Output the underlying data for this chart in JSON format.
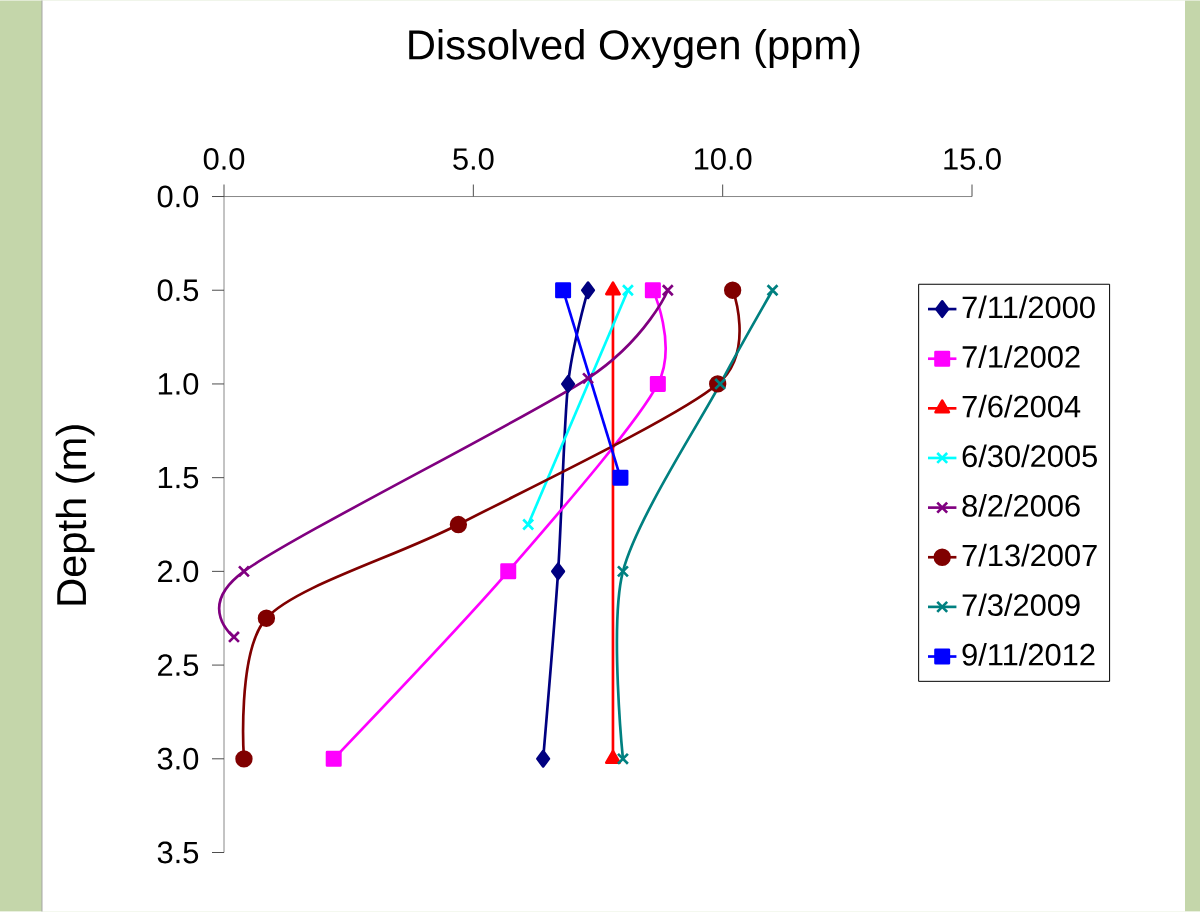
{
  "chart_data": {
    "type": "line",
    "xlabel": "Dissolved Oxygen (ppm)",
    "ylabel": "Depth (m)",
    "xlim": [
      0,
      15
    ],
    "xticks": [
      {
        "value": 0,
        "label": "0.0"
      },
      {
        "value": 5,
        "label": "5.0"
      },
      {
        "value": 10,
        "label": "10.0"
      },
      {
        "value": 15,
        "label": "15.0"
      }
    ],
    "ylim": [
      3.5,
      0
    ],
    "yticks": [
      {
        "value": 0,
        "label": "0.0"
      },
      {
        "value": 0.5,
        "label": "0.5"
      },
      {
        "value": 1,
        "label": "1.0"
      },
      {
        "value": 1.5,
        "label": "1.5"
      },
      {
        "value": 2,
        "label": "2.0"
      },
      {
        "value": 2.5,
        "label": "2.5"
      },
      {
        "value": 3,
        "label": "3.0"
      },
      {
        "value": 3.5,
        "label": "3.5"
      }
    ],
    "legend": "right",
    "series": [
      {
        "name": "7/11/2000",
        "color": "#000080",
        "marker": "diamond",
        "x": [
          7.3,
          6.9,
          6.7,
          6.4
        ],
        "values": [
          0.5,
          1.0,
          2.0,
          3.0
        ]
      },
      {
        "name": "7/1/2002",
        "color": "#ff00ff",
        "marker": "square",
        "x": [
          8.6,
          8.7,
          5.7,
          2.2
        ],
        "values": [
          0.5,
          1.0,
          2.0,
          3.0
        ]
      },
      {
        "name": "7/6/2004",
        "color": "#ff0000",
        "marker": "triangle",
        "x": [
          7.8,
          7.8
        ],
        "values": [
          0.5,
          3.0
        ]
      },
      {
        "name": "6/30/2005",
        "color": "#00ffff",
        "marker": "cross",
        "x": [
          8.1,
          6.1
        ],
        "values": [
          0.5,
          1.75
        ]
      },
      {
        "name": "8/2/2006",
        "color": "#800080",
        "marker": "cross",
        "x": [
          8.9,
          7.3,
          0.4,
          0.2
        ],
        "values": [
          0.5,
          0.97,
          2.0,
          2.35
        ]
      },
      {
        "name": "7/13/2007",
        "color": "#800000",
        "marker": "circle",
        "x": [
          10.2,
          9.9,
          4.7,
          0.85,
          0.4
        ],
        "values": [
          0.5,
          1.0,
          1.75,
          2.25,
          3.0
        ]
      },
      {
        "name": "7/3/2009",
        "color": "#008080",
        "marker": "cross",
        "x": [
          11.0,
          9.95,
          8.0,
          8.0
        ],
        "values": [
          0.5,
          1.0,
          2.0,
          3.0
        ]
      },
      {
        "name": "9/11/2012",
        "color": "#0000ff",
        "marker": "square",
        "x": [
          6.8,
          7.95
        ],
        "values": [
          0.5,
          1.5
        ]
      }
    ]
  }
}
